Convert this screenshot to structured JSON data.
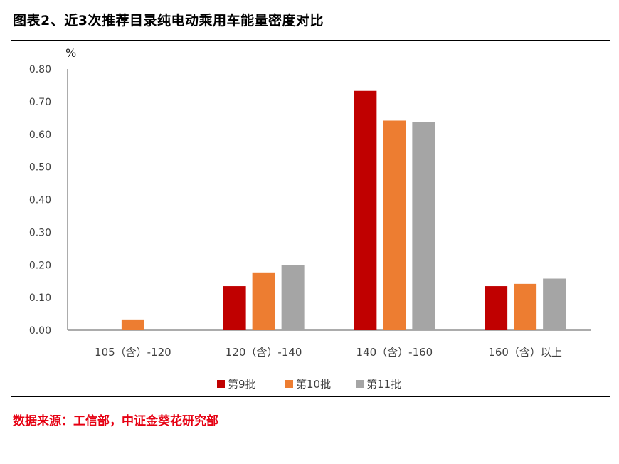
{
  "title": "图表2、近3次推荐目录纯电动乘用车能量密度对比",
  "source": "数据来源：工信部，中证金葵花研究部",
  "chart_data": {
    "type": "bar",
    "title": "图表2、近3次推荐目录纯电动乘用车能量密度对比",
    "ylabel": "%",
    "xlabel": "",
    "categories": [
      "105（含）-120",
      "120（含）-140",
      "140（含）-160",
      "160（含）以上"
    ],
    "ylim": [
      0,
      0.8
    ],
    "yticks": [
      "0.00",
      "0.10",
      "0.20",
      "0.30",
      "0.40",
      "0.50",
      "0.60",
      "0.70",
      "0.80"
    ],
    "grid": false,
    "legend_position": "bottom",
    "series": [
      {
        "name": "第9批",
        "color": "#c00000",
        "values": [
          0.0,
          0.135,
          0.733,
          0.135
        ]
      },
      {
        "name": "第10批",
        "color": "#ed7d31",
        "values": [
          0.033,
          0.177,
          0.642,
          0.142
        ]
      },
      {
        "name": "第11批",
        "color": "#a5a5a5",
        "values": [
          0.0,
          0.2,
          0.637,
          0.158
        ]
      }
    ]
  }
}
